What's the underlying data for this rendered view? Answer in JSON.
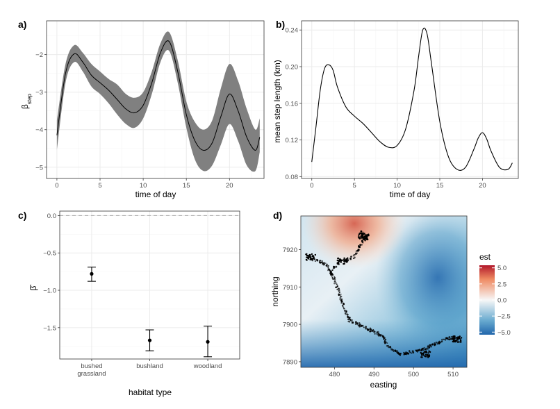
{
  "colors": {
    "band": "#808080",
    "line": "#000000",
    "grid_major": "#ebebeb",
    "grid_minor": "#f5f5f5",
    "border": "#333333",
    "zero_line": "#b3b3b3",
    "scale_low": "#2166ac",
    "scale_mid": "#f7f7f7",
    "scale_high": "#b2182b"
  },
  "chart_data": [
    {
      "panel": "a)",
      "type": "line",
      "xlabel": "time of day",
      "ylabel_main": "β",
      "ylabel_sub": "step",
      "xlim": [
        0,
        24
      ],
      "ylim": [
        -5.3,
        -1.1
      ],
      "xticks": [
        "0",
        "5",
        "10",
        "15",
        "20"
      ],
      "yticks": [
        "−2",
        "−3",
        "−4",
        "−5"
      ],
      "x": [
        0,
        1,
        2,
        3,
        4,
        5,
        6,
        7,
        8,
        9,
        10,
        11,
        12,
        13,
        14,
        15,
        16,
        17,
        18,
        19,
        20,
        21,
        22,
        23,
        23.5
      ],
      "y": [
        -4.15,
        -2.5,
        -1.98,
        -2.2,
        -2.55,
        -2.75,
        -2.95,
        -3.2,
        -3.45,
        -3.55,
        -3.35,
        -2.75,
        -1.95,
        -1.65,
        -2.45,
        -3.6,
        -4.3,
        -4.55,
        -4.35,
        -3.65,
        -3.05,
        -3.5,
        -4.2,
        -4.55,
        -4.2
      ],
      "lower": [
        -4.55,
        -2.75,
        -2.2,
        -2.45,
        -2.85,
        -3.05,
        -3.3,
        -3.6,
        -3.85,
        -3.95,
        -3.7,
        -3.05,
        -2.2,
        -1.9,
        -2.75,
        -3.95,
        -4.8,
        -5.1,
        -4.95,
        -4.4,
        -3.85,
        -4.3,
        -4.95,
        -5.1,
        -4.6
      ],
      "upper": [
        -3.75,
        -2.25,
        -1.75,
        -1.95,
        -2.25,
        -2.45,
        -2.65,
        -2.8,
        -3.05,
        -3.15,
        -3.0,
        -2.45,
        -1.7,
        -1.4,
        -2.15,
        -3.25,
        -3.8,
        -4.0,
        -3.75,
        -2.9,
        -2.25,
        -2.7,
        -3.45,
        -4.0,
        -3.7
      ]
    },
    {
      "panel": "b)",
      "type": "line",
      "xlabel": "time of day",
      "ylabel": "mean step length (km)",
      "xlim": [
        -0.5,
        24
      ],
      "ylim": [
        0.078,
        0.244
      ],
      "xticks": [
        "0",
        "5",
        "10",
        "15",
        "20"
      ],
      "yticks": [
        "0.24",
        "0.20",
        "0.16",
        "0.12",
        "0.08"
      ],
      "x": [
        0,
        0.5,
        1,
        1.5,
        2,
        2.5,
        3,
        4,
        5,
        6,
        7,
        8,
        9,
        10,
        11,
        12,
        12.5,
        13,
        13.5,
        14,
        15,
        16,
        17,
        18,
        19,
        19.5,
        20,
        20.5,
        21,
        22,
        23,
        23.5
      ],
      "y": [
        0.096,
        0.135,
        0.175,
        0.198,
        0.202,
        0.196,
        0.178,
        0.156,
        0.146,
        0.138,
        0.128,
        0.118,
        0.112,
        0.114,
        0.132,
        0.175,
        0.21,
        0.24,
        0.236,
        0.205,
        0.14,
        0.102,
        0.088,
        0.09,
        0.11,
        0.122,
        0.128,
        0.121,
        0.108,
        0.09,
        0.088,
        0.095
      ]
    },
    {
      "panel": "c)",
      "type": "scatter",
      "xlabel": "habitat type",
      "ylabel": "β̂",
      "ylim": [
        -1.92,
        0.06
      ],
      "categories": [
        "bushed grassland",
        "bushland",
        "woodland"
      ],
      "category_lines": [
        [
          "bushed",
          "grassland"
        ],
        [
          "bushland"
        ],
        [
          "woodland"
        ]
      ],
      "yticks": [
        "0.0",
        "−0.5",
        "−1.0",
        "−1.5"
      ],
      "values": [
        -0.78,
        -1.67,
        -1.69
      ],
      "lower": [
        -0.88,
        -1.81,
        -1.89
      ],
      "upper": [
        -0.69,
        -1.53,
        -1.48
      ],
      "reference_line": 0
    },
    {
      "panel": "d)",
      "type": "heatmap",
      "xlabel": "easting",
      "ylabel": "northing",
      "xlim": [
        471.5,
        513.5
      ],
      "ylim": [
        7888.5,
        7929
      ],
      "xticks": [
        "480",
        "490",
        "500",
        "510"
      ],
      "yticks": [
        "7920",
        "7910",
        "7900",
        "7890"
      ],
      "legend_title": "est",
      "legend_ticks": [
        "5.0",
        "2.5",
        "0.0",
        "−2.5",
        "−5.0"
      ],
      "legend_placement": "right",
      "track": [
        [
          473,
          7918
        ],
        [
          476,
          7917
        ],
        [
          478,
          7916
        ],
        [
          479,
          7914
        ],
        [
          480,
          7912
        ],
        [
          481,
          7909
        ],
        [
          482,
          7906
        ],
        [
          483,
          7903
        ],
        [
          484,
          7901
        ],
        [
          486,
          7900
        ],
        [
          488,
          7899
        ],
        [
          490,
          7898
        ],
        [
          492,
          7897
        ],
        [
          493,
          7895
        ],
        [
          495,
          7893
        ],
        [
          497,
          7892
        ],
        [
          499,
          7892.5
        ],
        [
          502,
          7893
        ],
        [
          504,
          7894
        ],
        [
          506,
          7895
        ],
        [
          508,
          7896
        ],
        [
          510,
          7896.5
        ],
        [
          511.5,
          7896
        ]
      ],
      "track_branch": [
        [
          479,
          7914
        ],
        [
          482,
          7917
        ],
        [
          485,
          7918
        ],
        [
          486,
          7920
        ],
        [
          487,
          7922
        ],
        [
          488,
          7923.5
        ],
        [
          487,
          7924.5
        ],
        [
          486,
          7923
        ]
      ],
      "cluster_centers": [
        [
          487.5,
          7923.5
        ],
        [
          511,
          7896
        ],
        [
          503,
          7892
        ],
        [
          474,
          7918
        ],
        [
          482,
          7917
        ]
      ]
    }
  ]
}
